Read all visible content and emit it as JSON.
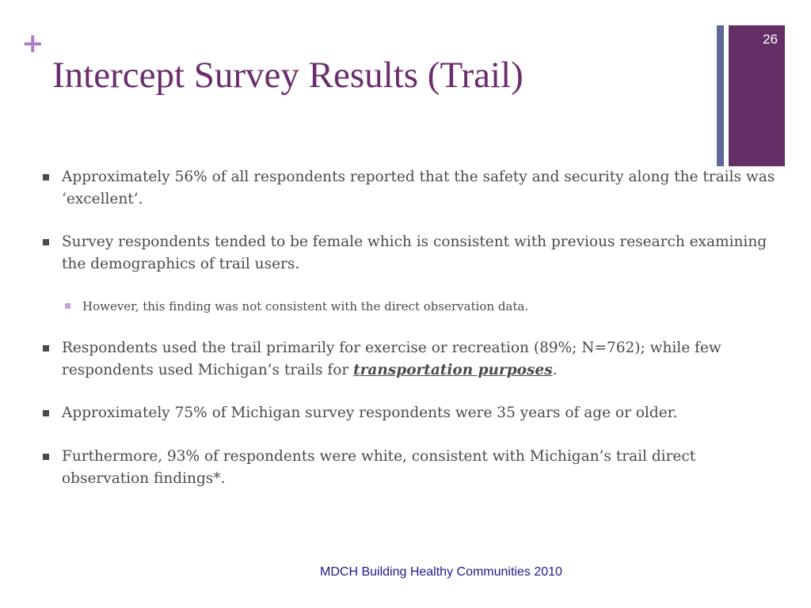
{
  "slide": {
    "plus_symbol": "+",
    "title": "Intercept Survey Results (Trail)",
    "page_number": "26",
    "footer": "MDCH Building Healthy Communities 2010"
  },
  "bullets": [
    {
      "text": "Approximately 56% of all respondents reported that the safety and security along the trails was ‘excellent’."
    },
    {
      "text": "Survey respondents tended to be female which is consistent with previous research examining the demographics of trail users."
    },
    {
      "text": "However, this finding was not consistent with the direct observation data."
    },
    {
      "text_before": "Respondents used the trail primarily for exercise or recreation (89%; N=762); while few respondents used Michigan’s trails for ",
      "emphasis": "transportation purposes",
      "text_after": "."
    },
    {
      "text": "Approximately 75% of Michigan survey respondents were  35 years of age or older."
    },
    {
      "text": "Furthermore, 93% of respondents were white, consistent with Michigan’s trail direct observation findings*."
    }
  ],
  "colors": {
    "title": "#6b2d6b",
    "plus": "#b07cc6",
    "accent_thin": "#5e6796",
    "accent_wide": "#642f66",
    "body_text": "#4a4a4a",
    "sub_marker": "#c9a3d8",
    "footer": "#1a1a8c"
  }
}
